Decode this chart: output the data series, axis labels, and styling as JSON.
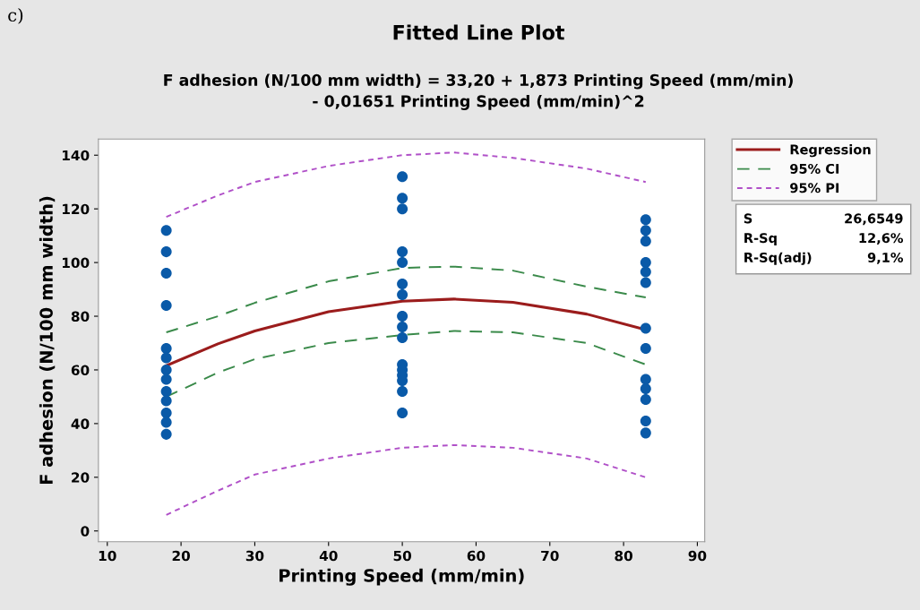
{
  "chart_data": {
    "type": "line",
    "title": "Fitted Line Plot",
    "subtitle": "F adhesion (N/100 mm width) = 33,20 + 1,873 Printing Speed (mm/min)\n- 0,01651 Printing Speed (mm/min)^2",
    "xlabel": "Printing Speed (mm/min)",
    "ylabel": "F adhesion (N/100 mm width)",
    "xlim": [
      8.8,
      91
    ],
    "ylim": [
      -4,
      146
    ],
    "xticks": [
      10,
      20,
      30,
      40,
      50,
      60,
      70,
      80,
      90
    ],
    "yticks": [
      0,
      20,
      40,
      60,
      80,
      100,
      120,
      140
    ],
    "grid": false,
    "legend": "right",
    "annotations": [
      "c)",
      "S 26,6549",
      "R-Sq 12,6%",
      "R-Sq(adj) 9,1%"
    ],
    "series": [
      {
        "type": "scatter",
        "marker": "circle",
        "color": "#0a5aa8",
        "x": [
          18,
          18,
          18,
          18,
          18,
          18,
          18,
          18,
          18,
          18,
          18,
          18,
          18,
          50,
          50,
          50,
          50,
          50,
          50,
          50,
          50,
          50,
          50,
          50,
          50,
          50,
          50,
          50,
          50,
          83,
          83,
          83,
          83,
          83,
          83,
          83,
          83,
          83,
          83,
          83,
          83,
          83
        ],
        "values": [
          112,
          104,
          96,
          84,
          68,
          64.5,
          60,
          56.5,
          52,
          48.5,
          44,
          40.5,
          36,
          132,
          124,
          120,
          104,
          100,
          92,
          88,
          80,
          76,
          72,
          62,
          60,
          58,
          56,
          52,
          44,
          116,
          112,
          108,
          100,
          96.5,
          92.5,
          75.5,
          68,
          56.5,
          53,
          49,
          41,
          36.5
        ]
      },
      {
        "name": "Regression",
        "color": "#9b1c1c",
        "line_style": "solid",
        "x": [
          18,
          25,
          30,
          40,
          50,
          57,
          65,
          75,
          83
        ],
        "values": [
          61.6,
          69.7,
          74.5,
          81.7,
          85.6,
          86.4,
          85.2,
          80.8,
          75
        ]
      },
      {
        "name": "95% CI",
        "color": "#3a8a4a",
        "line_style": "dashed",
        "x": [
          18,
          25,
          30,
          40,
          50,
          57,
          65,
          75,
          83
        ],
        "values": [
          74,
          80,
          85,
          93,
          98,
          98.5,
          97,
          91,
          87
        ]
      },
      {
        "color": "#3a8a4a",
        "line_style": "dashed",
        "x": [
          18,
          25,
          30,
          40,
          50,
          57,
          65,
          75,
          83
        ],
        "values": [
          50,
          59,
          64,
          70,
          73,
          74.5,
          74,
          70,
          62
        ]
      },
      {
        "name": "95% PI",
        "color": "#b050c8",
        "line_style": "dotted",
        "x": [
          18,
          25,
          30,
          40,
          50,
          57,
          65,
          75,
          83
        ],
        "values": [
          117,
          125,
          130,
          136,
          140,
          141,
          139,
          135,
          130
        ]
      },
      {
        "color": "#b050c8",
        "line_style": "dotted",
        "x": [
          18,
          25,
          30,
          40,
          50,
          57,
          65,
          75,
          83
        ],
        "values": [
          6,
          15,
          21,
          27,
          31,
          32,
          31,
          27,
          20
        ]
      }
    ]
  }
}
